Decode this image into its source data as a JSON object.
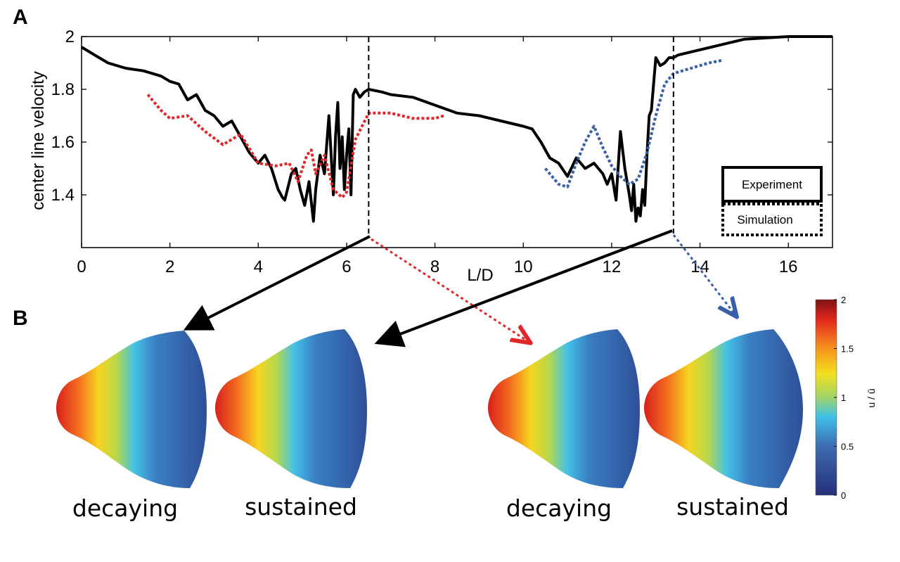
{
  "panels": {
    "a": "A",
    "b": "B"
  },
  "chart_data": {
    "type": "line",
    "xlabel": "L/D",
    "ylabel": "center line velocity",
    "xlim": [
      0,
      17
    ],
    "ylim": [
      1.2,
      2.0
    ],
    "xticks": [
      0,
      2,
      4,
      6,
      8,
      10,
      12,
      14,
      16
    ],
    "yticks": [
      1.4,
      1.6,
      1.8,
      2
    ],
    "xtick_labels": [
      "0",
      "2",
      "4",
      "6",
      "8",
      "10",
      "12",
      "14",
      "16"
    ],
    "ytick_labels": [
      "1.4",
      "1.6",
      "1.8",
      "2"
    ],
    "grid": false,
    "legend_position": "bottom-right",
    "legend": [
      {
        "label": "Experiment",
        "style": "solid"
      },
      {
        "label": "Simulation",
        "style": "dotted"
      }
    ],
    "series": [
      {
        "name": "Experiment",
        "style": "solid",
        "color": "#000000",
        "x": [
          0,
          0.3,
          0.6,
          1.0,
          1.4,
          1.8,
          2.0,
          2.2,
          2.4,
          2.6,
          2.8,
          3.0,
          3.2,
          3.4,
          3.6,
          3.8,
          4.0,
          4.15,
          4.3,
          4.45,
          4.55,
          4.6,
          4.75,
          4.85,
          4.95,
          5.05,
          5.15,
          5.25,
          5.3,
          5.4,
          5.5,
          5.6,
          5.7,
          5.75,
          5.8,
          5.85,
          5.9,
          5.95,
          6.0,
          6.05,
          6.1,
          6.15,
          6.2,
          6.3,
          6.4,
          6.5,
          6.8,
          7.0,
          7.5,
          8.0,
          8.5,
          9.0,
          9.5,
          10.0,
          10.2,
          10.4,
          10.6,
          10.8,
          11.0,
          11.2,
          11.4,
          11.6,
          11.8,
          11.9,
          12.0,
          12.1,
          12.2,
          12.3,
          12.4,
          12.45,
          12.5,
          12.55,
          12.6,
          12.65,
          12.7,
          12.75,
          12.8,
          12.85,
          12.9,
          13.0,
          13.1,
          13.2,
          13.3,
          13.4,
          13.5,
          14.0,
          14.5,
          15.0,
          16.0,
          17.0
        ],
        "y": [
          1.96,
          1.93,
          1.9,
          1.88,
          1.87,
          1.85,
          1.83,
          1.82,
          1.76,
          1.78,
          1.72,
          1.7,
          1.66,
          1.68,
          1.62,
          1.56,
          1.52,
          1.55,
          1.5,
          1.42,
          1.39,
          1.38,
          1.48,
          1.5,
          1.42,
          1.36,
          1.45,
          1.3,
          1.42,
          1.55,
          1.48,
          1.7,
          1.4,
          1.62,
          1.75,
          1.5,
          1.62,
          1.42,
          1.55,
          1.65,
          1.4,
          1.78,
          1.8,
          1.77,
          1.79,
          1.8,
          1.79,
          1.78,
          1.77,
          1.74,
          1.71,
          1.7,
          1.68,
          1.66,
          1.65,
          1.6,
          1.54,
          1.52,
          1.47,
          1.54,
          1.5,
          1.52,
          1.48,
          1.44,
          1.48,
          1.38,
          1.64,
          1.5,
          1.4,
          1.34,
          1.44,
          1.3,
          1.35,
          1.32,
          1.42,
          1.36,
          1.55,
          1.7,
          1.72,
          1.92,
          1.89,
          1.9,
          1.92,
          1.92,
          1.93,
          1.95,
          1.97,
          1.99,
          2.0,
          2.0
        ]
      },
      {
        "style": "dotted",
        "color": "#e0282a",
        "x": [
          1.5,
          1.8,
          2.0,
          2.4,
          2.8,
          3.2,
          3.6,
          4.0,
          4.4,
          4.7,
          4.9,
          5.1,
          5.2,
          5.3,
          5.5,
          5.7,
          5.9,
          6.0,
          6.2,
          6.5,
          7.0,
          7.5,
          8.0,
          8.2
        ],
        "y": [
          1.78,
          1.72,
          1.69,
          1.7,
          1.64,
          1.59,
          1.63,
          1.52,
          1.51,
          1.52,
          1.45,
          1.55,
          1.57,
          1.48,
          1.55,
          1.42,
          1.39,
          1.41,
          1.61,
          1.71,
          1.71,
          1.69,
          1.69,
          1.7
        ]
      },
      {
        "style": "dotted",
        "color": "#3a5fa8",
        "x": [
          10.5,
          10.8,
          11.0,
          11.2,
          11.4,
          11.6,
          11.8,
          12.0,
          12.2,
          12.4,
          12.6,
          12.8,
          13.0,
          13.2,
          13.4,
          13.8,
          14.2,
          14.5
        ],
        "y": [
          1.5,
          1.44,
          1.43,
          1.52,
          1.6,
          1.66,
          1.58,
          1.51,
          1.47,
          1.44,
          1.46,
          1.56,
          1.7,
          1.82,
          1.86,
          1.88,
          1.9,
          1.91
        ]
      }
    ],
    "markers": [
      6.5,
      13.4
    ]
  },
  "colorbar": {
    "label": "u / ū",
    "range": [
      0,
      2
    ],
    "ticks": [
      0,
      0.5,
      1,
      1.5,
      2
    ],
    "tick_labels": [
      "0",
      "0.5",
      "1",
      "1.5",
      "2"
    ]
  },
  "profiles": [
    {
      "caption": "decaying"
    },
    {
      "caption": "sustained"
    },
    {
      "caption": "decaying"
    },
    {
      "caption": "sustained"
    }
  ]
}
